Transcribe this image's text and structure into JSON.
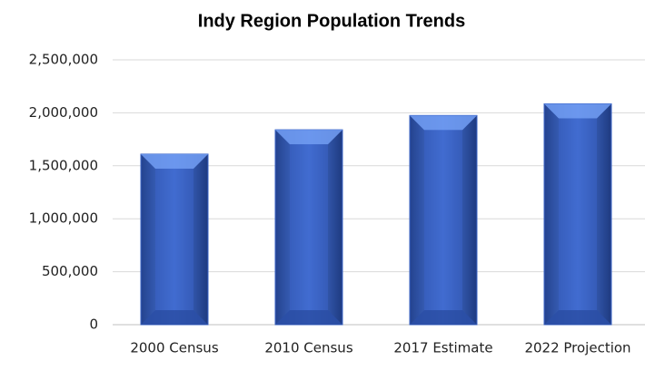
{
  "chart_data": {
    "type": "bar",
    "title": "Indy Region Population Trends",
    "categories": [
      "2000 Census",
      "2010 Census",
      "2017 Estimate",
      "2022 Projection"
    ],
    "values": [
      1610000,
      1840000,
      1975000,
      2085000
    ],
    "color": "#3a63c6",
    "ylim": [
      0,
      2500000
    ],
    "yticks": [
      0,
      {
        "value": 500000,
        "label": "500,000"
      },
      {
        "value": 1000000,
        "label": "1,000,000"
      },
      {
        "value": 1500000,
        "label": "1,500,000"
      },
      {
        "value": 2000000,
        "label": "2,000,000"
      },
      {
        "value": 2500000,
        "label": "2,500,000"
      }
    ],
    "grid": true
  }
}
